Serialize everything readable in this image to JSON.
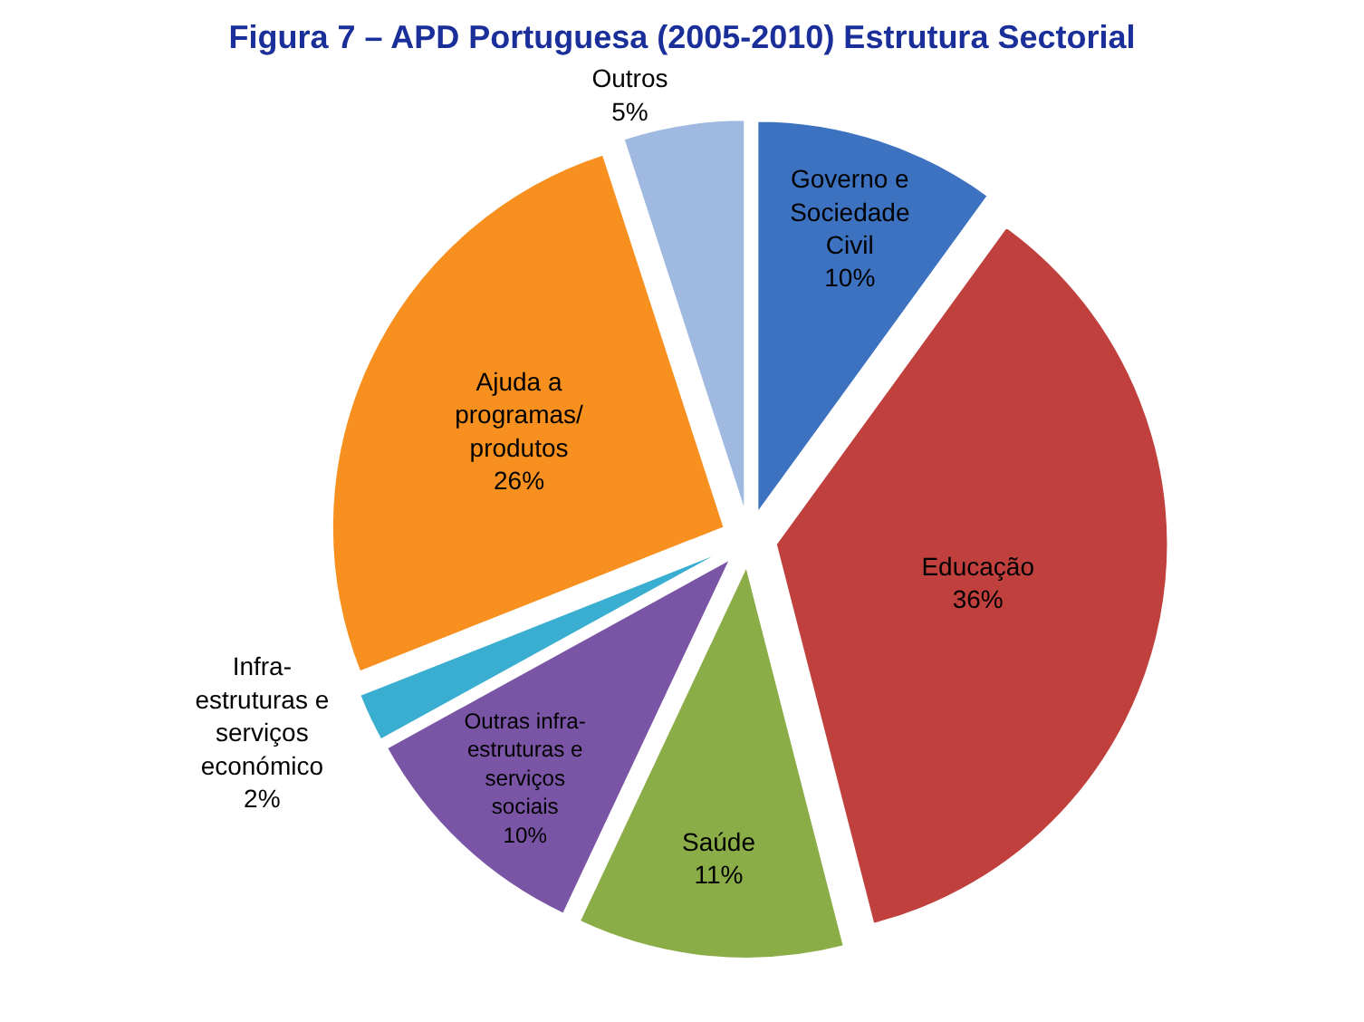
{
  "chart_data": {
    "type": "pie",
    "title": "Figura 7 – APD Portuguesa (2005-2010) Estrutura Sectorial",
    "categories": [
      "Governo e Sociedade Civil",
      "Educação",
      "Saúde",
      "Outras infra-estruturas e serviços sociais",
      "Infra-estruturas e serviços económico",
      "Ajuda a programas/ produtos",
      "Outros"
    ],
    "values": [
      10,
      36,
      11,
      10,
      2,
      26,
      5
    ],
    "colors": [
      "#3c72bf",
      "#c0403d",
      "#8aad48",
      "#7a55a6",
      "#3aaed0",
      "#f7901e",
      "#9fb9e0"
    ],
    "value_labels": [
      "10%",
      "36%",
      "11%",
      "10%",
      "2%",
      "26%",
      "5%"
    ],
    "legend": false
  }
}
